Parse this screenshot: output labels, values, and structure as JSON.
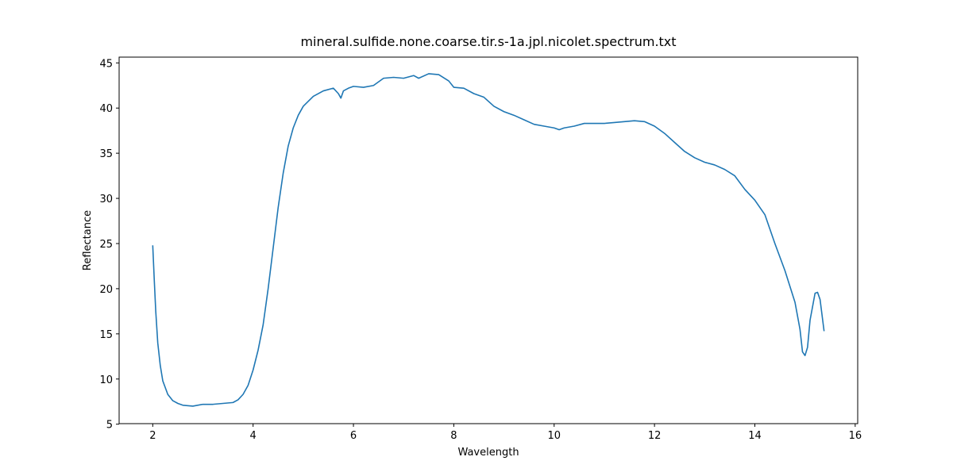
{
  "chart_data": {
    "type": "line",
    "title": "mineral.sulfide.none.coarse.tir.s-1a.jpl.nicolet.spectrum.txt",
    "x_label": "Wavelength",
    "y_label": "Reflectance",
    "x": [
      2.0,
      2.03,
      2.06,
      2.1,
      2.15,
      2.2,
      2.3,
      2.4,
      2.5,
      2.6,
      2.8,
      3.0,
      3.2,
      3.4,
      3.6,
      3.7,
      3.8,
      3.9,
      4.0,
      4.1,
      4.2,
      4.3,
      4.4,
      4.5,
      4.6,
      4.7,
      4.8,
      4.9,
      5.0,
      5.2,
      5.4,
      5.6,
      5.7,
      5.75,
      5.8,
      5.9,
      6.0,
      6.2,
      6.4,
      6.6,
      6.8,
      7.0,
      7.2,
      7.3,
      7.5,
      7.7,
      7.9,
      8.0,
      8.2,
      8.4,
      8.6,
      8.8,
      9.0,
      9.2,
      9.4,
      9.6,
      9.8,
      10.0,
      10.1,
      10.2,
      10.4,
      10.6,
      10.8,
      11.0,
      11.2,
      11.4,
      11.6,
      11.8,
      12.0,
      12.2,
      12.4,
      12.6,
      12.8,
      13.0,
      13.2,
      13.4,
      13.6,
      13.8,
      14.0,
      14.2,
      14.4,
      14.6,
      14.8,
      14.9,
      14.95,
      15.0,
      15.05,
      15.1,
      15.2,
      15.25,
      15.3,
      15.38
    ],
    "series": [
      {
        "name": "Reflectance",
        "color": "#1f77b4",
        "values": [
          24.8,
          21,
          17.5,
          14,
          11.5,
          9.8,
          8.3,
          7.6,
          7.3,
          7.1,
          7.0,
          7.2,
          7.2,
          7.3,
          7.4,
          7.7,
          8.3,
          9.3,
          11,
          13.2,
          16,
          20,
          24.5,
          29,
          32.8,
          35.8,
          37.8,
          39.2,
          40.2,
          41.3,
          41.9,
          42.2,
          41.6,
          41.1,
          41.9,
          42.2,
          42.4,
          42.3,
          42.5,
          43.3,
          43.4,
          43.3,
          43.6,
          43.3,
          43.8,
          43.7,
          43.0,
          42.3,
          42.2,
          41.6,
          41.2,
          40.2,
          39.6,
          39.2,
          38.7,
          38.2,
          38.0,
          37.8,
          37.6,
          37.8,
          38.0,
          38.3,
          38.3,
          38.3,
          38.4,
          38.5,
          38.6,
          38.5,
          38.0,
          37.2,
          36.2,
          35.2,
          34.5,
          34.0,
          33.7,
          33.2,
          32.5,
          31.0,
          29.8,
          28.2,
          25.0,
          22.0,
          18.5,
          15.5,
          13.0,
          12.6,
          13.5,
          16.5,
          19.5,
          19.6,
          18.8,
          15.3
        ]
      }
    ],
    "xlim": [
      1.33,
      16.05
    ],
    "ylim": [
      5.06,
      45.64
    ],
    "xticks": [
      2,
      4,
      6,
      8,
      10,
      12,
      14,
      16
    ],
    "yticks": [
      5,
      10,
      15,
      20,
      25,
      30,
      35,
      40,
      45
    ],
    "grid": false
  }
}
